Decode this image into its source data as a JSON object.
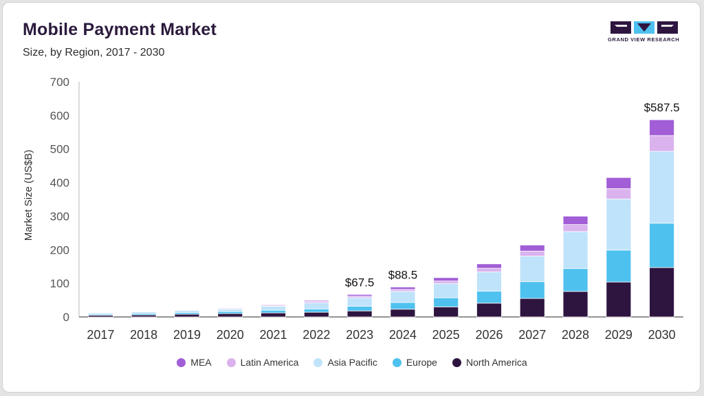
{
  "header": {
    "title": "Mobile Payment Market",
    "subtitle": "Size, by Region, 2017 - 2030",
    "logo_text": "GRAND VIEW RESEARCH"
  },
  "colors": {
    "MEA": "#a15ed6",
    "Latin America": "#dab3ee",
    "Asia Pacific": "#bfe3fa",
    "Europe": "#4fc1ef",
    "North America": "#2e1540"
  },
  "chart_data": {
    "type": "bar",
    "stacked": true,
    "ylabel": "Market Size (US$B)",
    "xlabel": "",
    "ylim": [
      0,
      700
    ],
    "yticks": [
      0,
      100,
      200,
      300,
      400,
      500,
      600,
      700
    ],
    "categories": [
      "2017",
      "2018",
      "2019",
      "2020",
      "2021",
      "2022",
      "2023",
      "2024",
      "2025",
      "2026",
      "2027",
      "2028",
      "2029",
      "2030"
    ],
    "series": [
      {
        "name": "North America",
        "values": [
          5,
          6,
          8,
          10,
          12,
          14,
          18,
          23,
          30,
          41,
          55,
          76,
          104,
          147
        ]
      },
      {
        "name": "Europe",
        "values": [
          3,
          4,
          5,
          6,
          8,
          10,
          14,
          20,
          27,
          36,
          50,
          68,
          95,
          132
        ]
      },
      {
        "name": "Asia Pacific",
        "values": [
          4,
          5,
          6,
          7,
          12,
          18,
          25,
          33,
          42,
          57,
          76,
          110,
          152,
          214
        ]
      },
      {
        "name": "Latin America",
        "values": [
          1,
          1,
          2,
          2,
          3,
          4,
          5,
          6,
          8,
          11,
          15,
          21,
          31,
          47
        ]
      },
      {
        "name": "MEA",
        "values": [
          1,
          1,
          1,
          2,
          2,
          3,
          5,
          7,
          10,
          13,
          18,
          25,
          33,
          47
        ]
      }
    ],
    "totals": {
      "2023": "$67.5",
      "2024": "$88.5",
      "2030": "$587.5"
    },
    "legend": [
      "MEA",
      "Latin America",
      "Asia Pacific",
      "Europe",
      "North America"
    ],
    "legend_position": "bottom",
    "grid": false
  }
}
